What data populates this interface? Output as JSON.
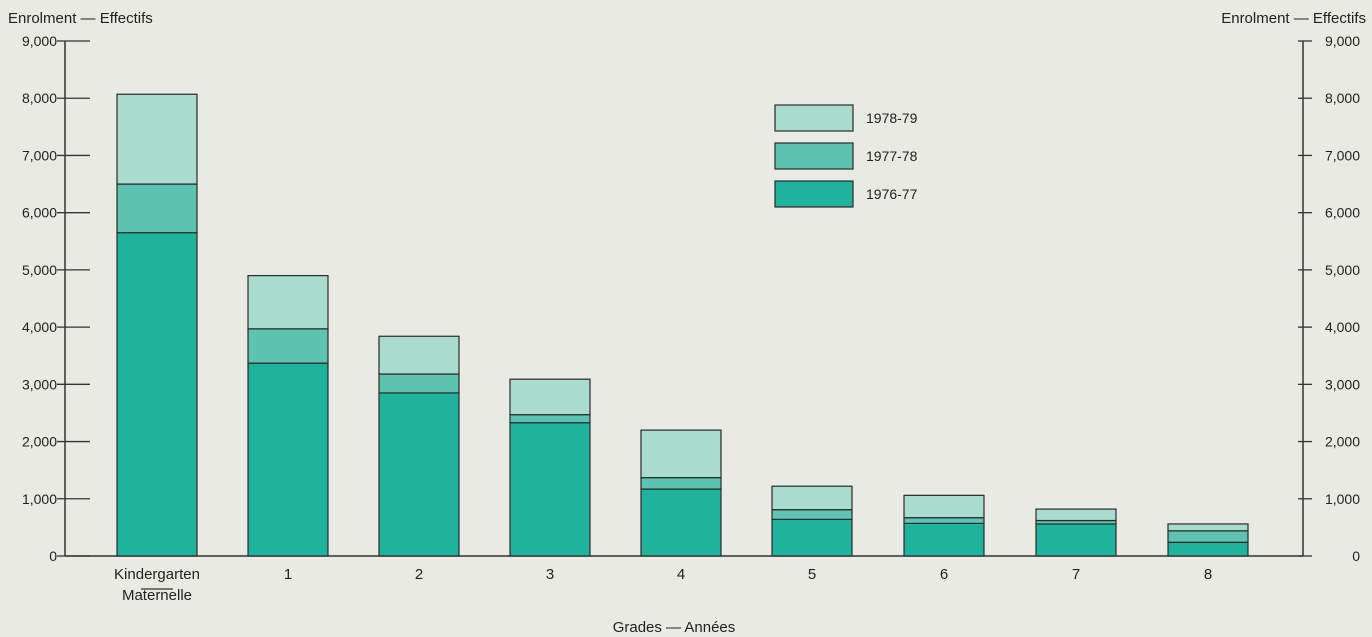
{
  "chart_data": {
    "type": "bar",
    "stacked": true,
    "ylabel_left": "Enrolment — Effectifs",
    "ylabel_right": "Enrolment — Effectifs",
    "xlabel": "Grades — Années",
    "ylim": [
      0,
      9000
    ],
    "yticks": [
      "0",
      "1,000",
      "2,000",
      "3,000",
      "4,000",
      "5,000",
      "6,000",
      "7,000",
      "8,000",
      "9,000"
    ],
    "categories": [
      [
        "Kindergarten",
        "Maternelle"
      ],
      [
        "1"
      ],
      [
        "2"
      ],
      [
        "3"
      ],
      [
        "4"
      ],
      [
        "5"
      ],
      [
        "6"
      ],
      [
        "7"
      ],
      [
        "8"
      ]
    ],
    "series": [
      {
        "name": "1976-77",
        "color": "#1fb39e",
        "values": [
          5650,
          3370,
          2850,
          2330,
          1170,
          640,
          570,
          560,
          240
        ]
      },
      {
        "name": "1977-78",
        "color": "#5cc4b0",
        "values": [
          850,
          600,
          330,
          140,
          200,
          170,
          100,
          60,
          200
        ]
      },
      {
        "name": "1978-79",
        "color": "#a9dccf",
        "values": [
          1570,
          930,
          660,
          620,
          830,
          410,
          390,
          200,
          120
        ]
      }
    ],
    "legend_position": "top-center",
    "grid": false
  }
}
